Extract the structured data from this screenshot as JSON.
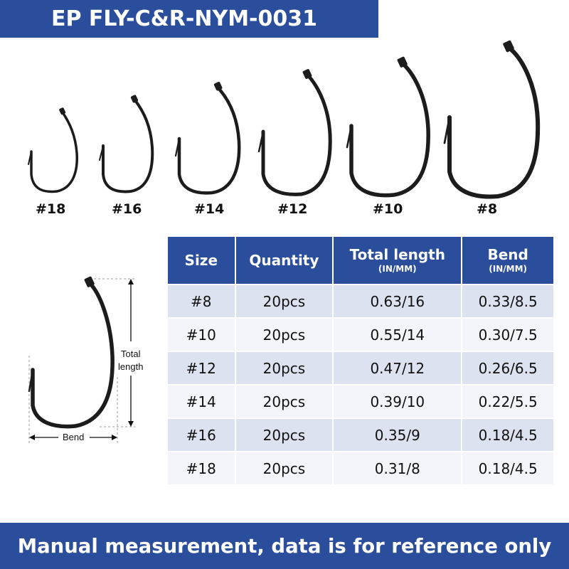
{
  "header": {
    "title": "EP FLY-C&R-NYM-0031"
  },
  "hooks": {
    "sizes": [
      "#18",
      "#16",
      "#14",
      "#12",
      "#10",
      "#8"
    ]
  },
  "diagram": {
    "total_length_label_1": "Total",
    "total_length_label_2": "length",
    "bend_label": "Bend"
  },
  "table": {
    "headers": {
      "size": "Size",
      "quantity": "Quantity",
      "total_length": "Total length",
      "total_length_unit": "(IN/MM)",
      "bend": "Bend",
      "bend_unit": "(IN/MM)"
    },
    "rows": [
      {
        "size": "#8",
        "quantity": "20pcs",
        "total_length": "0.63/16",
        "bend": "0.33/8.5"
      },
      {
        "size": "#10",
        "quantity": "20pcs",
        "total_length": "0.55/14",
        "bend": "0.30/7.5"
      },
      {
        "size": "#12",
        "quantity": "20pcs",
        "total_length": "0.47/12",
        "bend": "0.26/6.5"
      },
      {
        "size": "#14",
        "quantity": "20pcs",
        "total_length": "0.39/10",
        "bend": "0.22/5.5"
      },
      {
        "size": "#16",
        "quantity": "20pcs",
        "total_length": "0.35/9",
        "bend": "0.18/4.5"
      },
      {
        "size": "#18",
        "quantity": "20pcs",
        "total_length": "0.31/8",
        "bend": "0.18/4.5"
      }
    ]
  },
  "footer": {
    "note": "Manual measurement, data is for reference only"
  },
  "colors": {
    "banner": "#2a4d9c",
    "row_odd": "#dde2f1",
    "row_even": "#f4f5fa",
    "hook": "#1c1c1c"
  }
}
